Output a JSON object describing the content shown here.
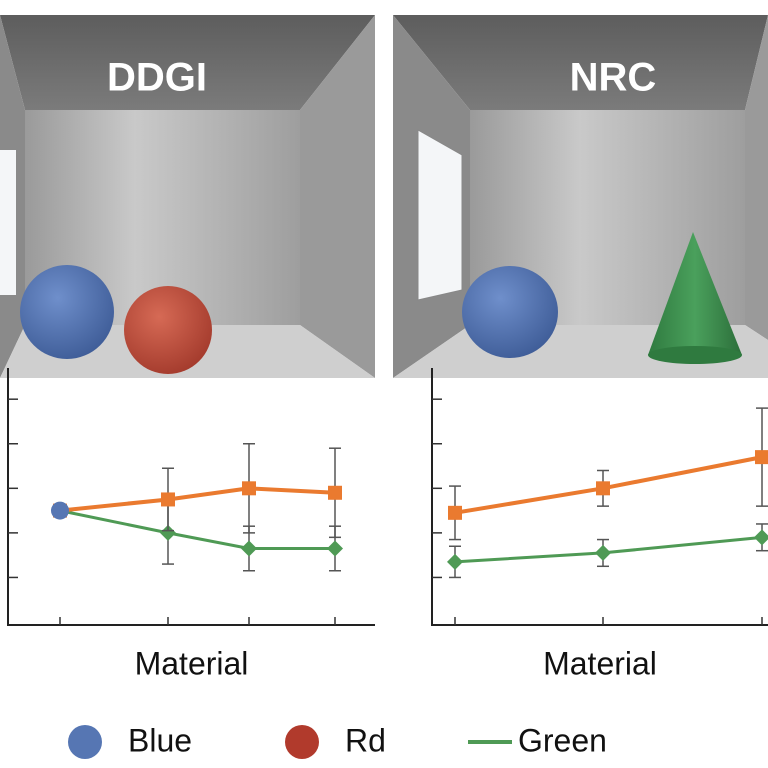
{
  "chart_data": [
    {
      "type": "line",
      "title": "DDGI",
      "x_label": "Material",
      "categories": [
        null,
        null,
        null,
        null
      ],
      "ylim": [
        0,
        5.7
      ],
      "yticks": [
        1,
        2,
        3,
        4,
        5
      ],
      "series": [
        {
          "name": "Blue",
          "color": "#5676b3",
          "legend_color": "#5676b3",
          "marker": "circle",
          "values": [
            2.5,
            null,
            null,
            null
          ]
        },
        {
          "name": "Rd",
          "color": "#ea7a2f",
          "legend_color": "#b13a2c",
          "marker": "square",
          "values": [
            2.5,
            2.75,
            3.0,
            2.9
          ],
          "errors": [
            0,
            0.7,
            1.0,
            1.0
          ]
        },
        {
          "name": "Green",
          "color": "#4f9a55",
          "legend_color": "#4f9a55",
          "marker": "diamond",
          "values": [
            2.5,
            2.0,
            1.65,
            1.65
          ],
          "errors": [
            0,
            0.7,
            0.5,
            0.5
          ]
        }
      ]
    },
    {
      "type": "line",
      "title": "NRC",
      "x_label": "Material",
      "categories": [
        null,
        null,
        null
      ],
      "ylim": [
        0,
        5.7
      ],
      "yticks": [
        1,
        2,
        3,
        4,
        5
      ],
      "series": [
        {
          "name": "Rd",
          "color": "#ea7a2f",
          "marker": "square",
          "values": [
            2.45,
            3.0,
            3.7
          ],
          "errors": [
            0.6,
            0.4,
            1.1
          ]
        },
        {
          "name": "Green",
          "color": "#4f9a55",
          "marker": "diamond",
          "values": [
            1.35,
            1.55,
            1.9
          ],
          "errors": [
            0.35,
            0.3,
            0.3
          ]
        }
      ]
    }
  ]
}
